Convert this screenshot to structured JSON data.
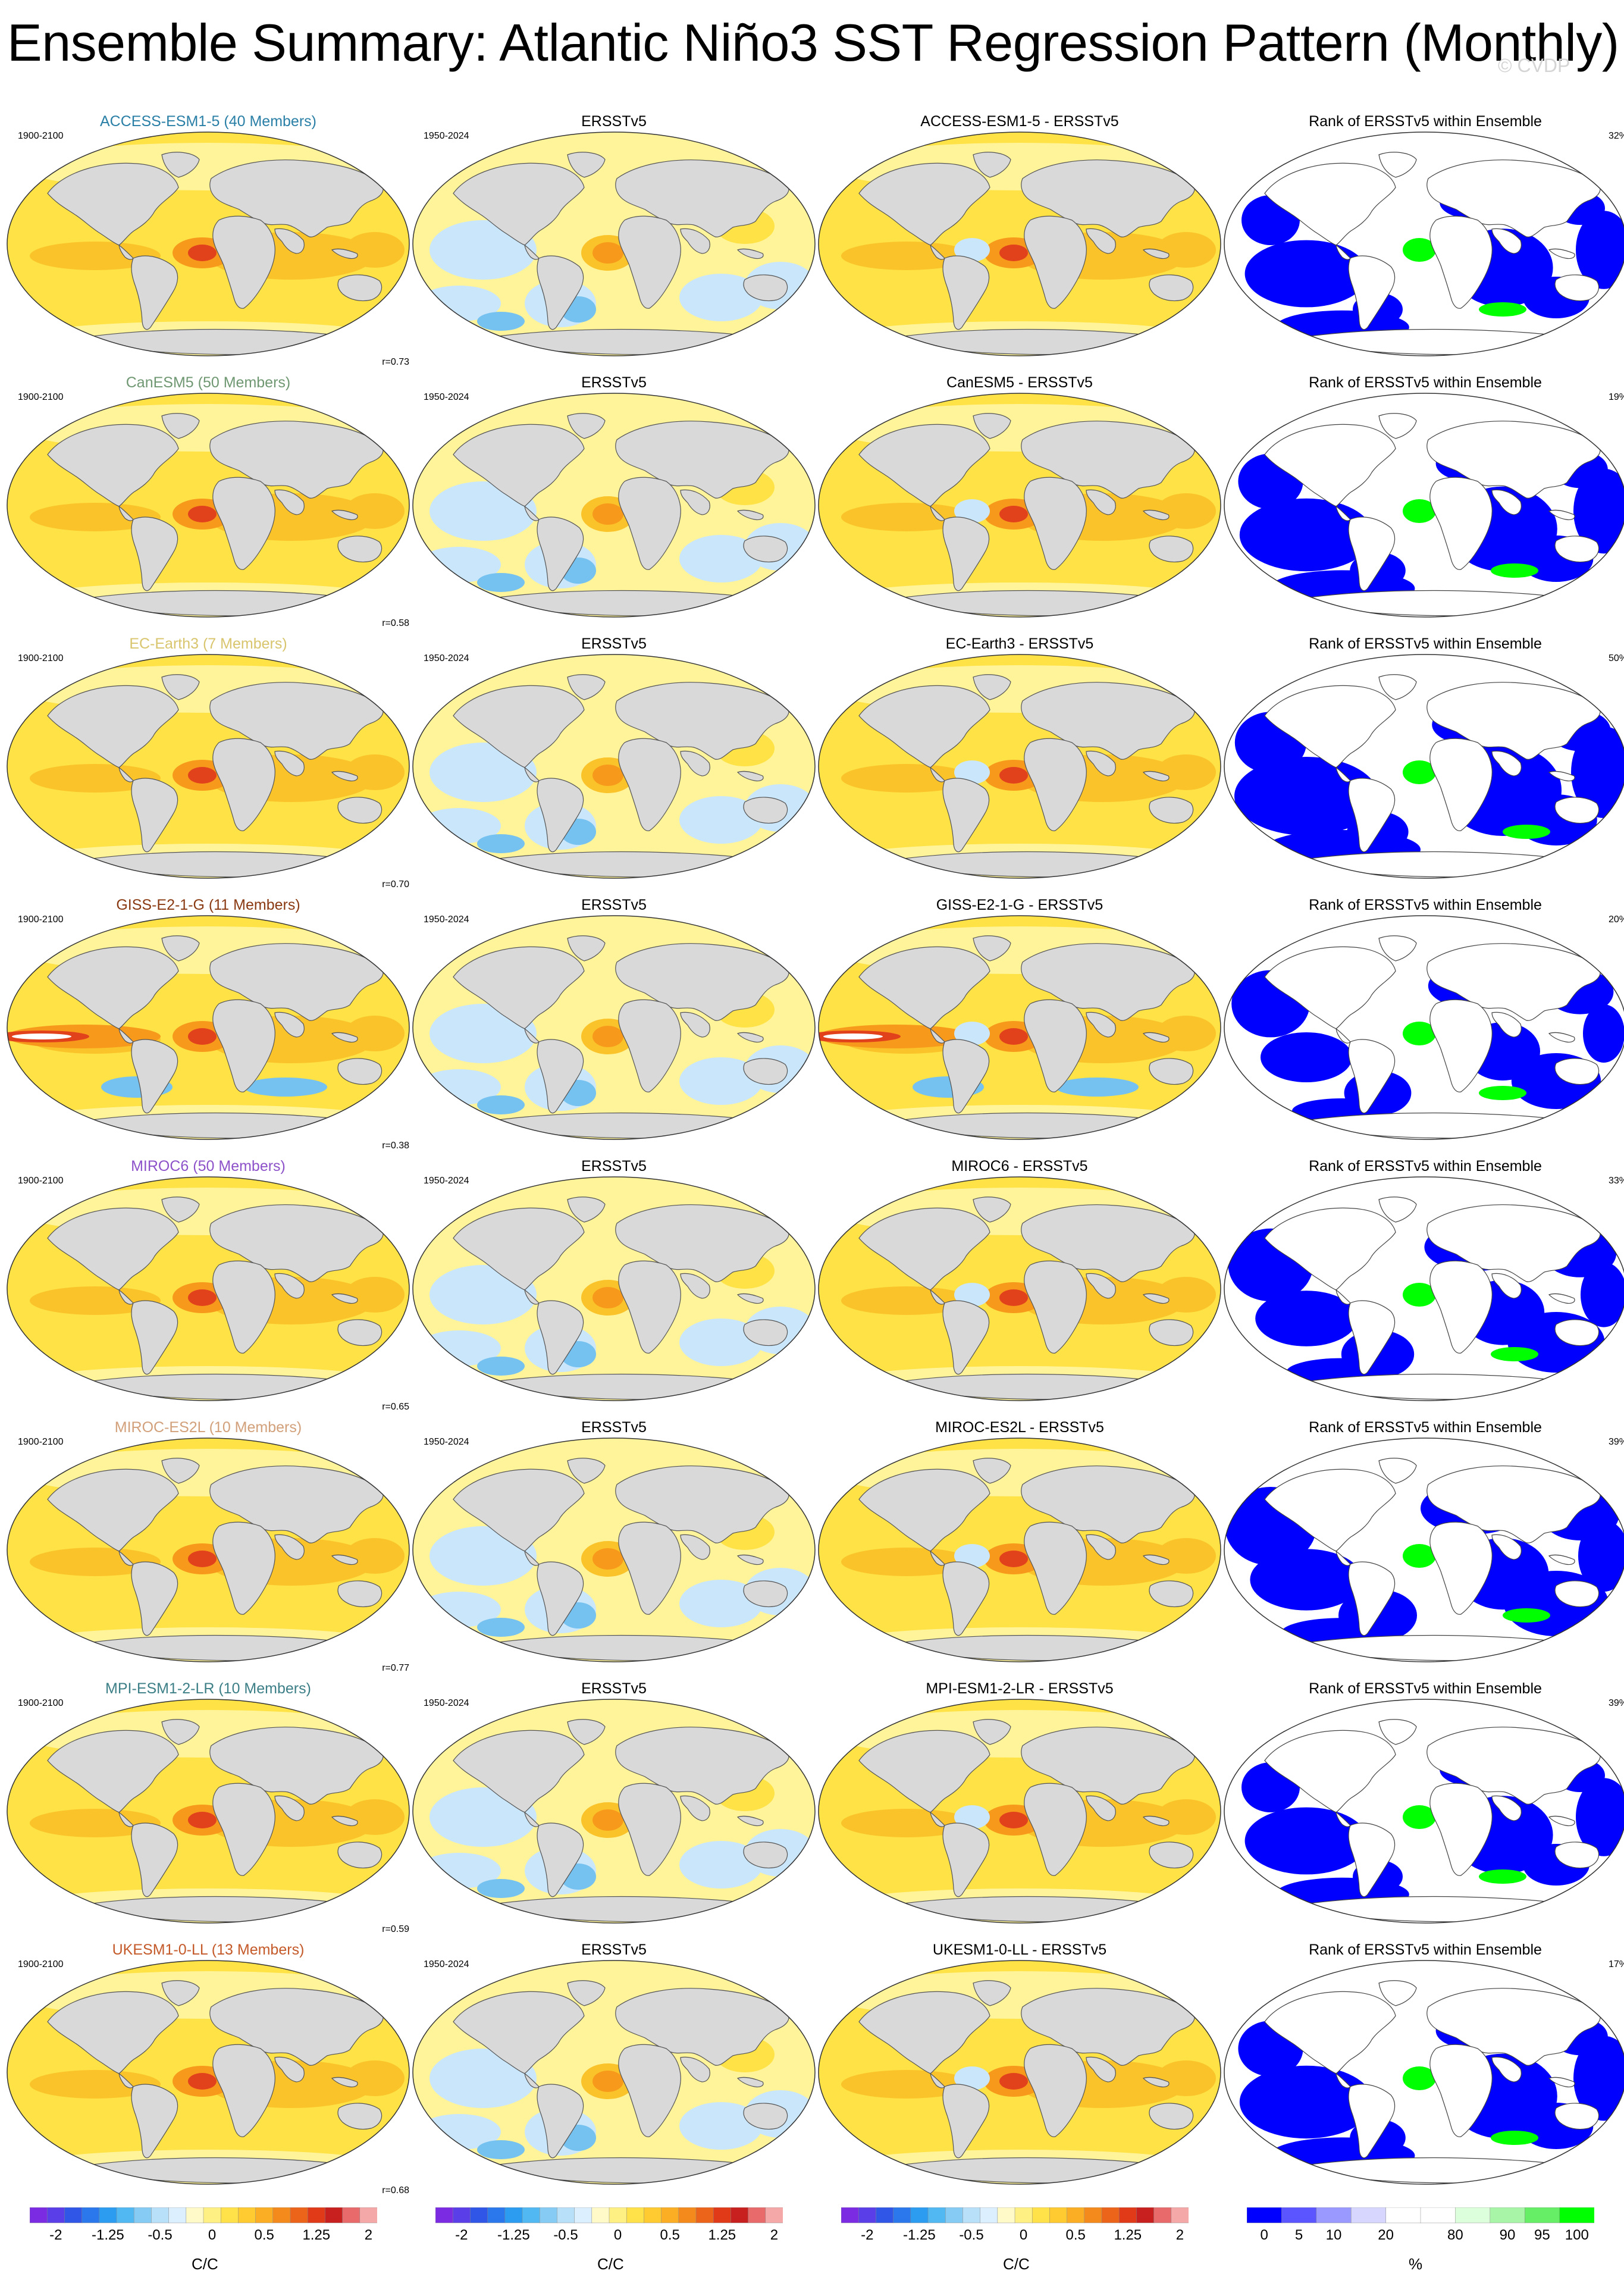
{
  "title": "Ensemble Summary: Atlantic Niño3 SST Regression Pattern (Monthly)",
  "watermark": "© CVDP",
  "colors": {
    "ocean_land": "#d9d9d9",
    "coast": "#555555",
    "warm_pale": "#fff49a",
    "warm_yellow": "#ffe245",
    "warm_gold": "#fbc32a",
    "warm_orange": "#f79a1c",
    "warm_red": "#e2421b",
    "cool_pale": "#c9e6fb",
    "cool_mid": "#75c1f0",
    "rank_blue": "#0000ff",
    "rank_green": "#00ff00",
    "rank_white": "#ffffff"
  },
  "column_headers": {
    "obs": "ERSSTv5",
    "rank": "Rank of ERSSTv5 within Ensemble"
  },
  "periods": {
    "model": "1900-2100",
    "obs": "1950-2024"
  },
  "rows": [
    {
      "model": "ACCESS-ESM1-5",
      "members_label": "ACCESS-ESM1-5 (40 Members)",
      "diff_label": "ACCESS-ESM1-5 - ERSSTv5",
      "corr": "r=0.73",
      "rank_pct": "32%",
      "color": "#2a7fa6"
    },
    {
      "model": "CanESM5",
      "members_label": "CanESM5 (50 Members)",
      "diff_label": "CanESM5 - ERSSTv5",
      "corr": "r=0.58",
      "rank_pct": "19%",
      "color": "#6f9872"
    },
    {
      "model": "EC-Earth3",
      "members_label": "EC-Earth3 (7 Members)",
      "diff_label": "EC-Earth3 - ERSSTv5",
      "corr": "r=0.70",
      "rank_pct": "50%",
      "color": "#d8c56d"
    },
    {
      "model": "GISS-E2-1-G",
      "members_label": "GISS-E2-1-G (11 Members)",
      "diff_label": "GISS-E2-1-G - ERSSTv5",
      "corr": "r=0.38",
      "rank_pct": "20%",
      "color": "#8a3a12"
    },
    {
      "model": "MIROC6",
      "members_label": "MIROC6 (50 Members)",
      "diff_label": "MIROC6 - ERSSTv5",
      "corr": "r=0.65",
      "rank_pct": "33%",
      "color": "#8d52c9"
    },
    {
      "model": "MIROC-ES2L",
      "members_label": "MIROC-ES2L (10 Members)",
      "diff_label": "MIROC-ES2L - ERSSTv5",
      "corr": "r=0.77",
      "rank_pct": "39%",
      "color": "#d2a07a"
    },
    {
      "model": "MPI-ESM1-2-LR",
      "members_label": "MPI-ESM1-2-LR (10 Members)",
      "diff_label": "MPI-ESM1-2-LR - ERSSTv5",
      "corr": "r=0.59",
      "rank_pct": "39%",
      "color": "#3d7f87"
    },
    {
      "model": "UKESM1-0-LL",
      "members_label": "UKESM1-0-LL (13 Members)",
      "diff_label": "UKESM1-0-LL - ERSSTv5",
      "corr": "r=0.68",
      "rank_pct": "17%",
      "color": "#c45a2a"
    }
  ],
  "colorbar_sst": {
    "unit": "C/C",
    "ticks": [
      "-2",
      "-1.25",
      "-0.5",
      "0",
      "0.5",
      "1.25",
      "2"
    ],
    "colors": [
      "#7b2be2",
      "#5a3ee8",
      "#2f56e6",
      "#2a78ec",
      "#2b9cf0",
      "#52b8f2",
      "#86cbf4",
      "#b8e0f8",
      "#dcefff",
      "#fffac8",
      "#fff083",
      "#ffe14a",
      "#ffcb30",
      "#fbad24",
      "#f48a1c",
      "#ec641a",
      "#e03a19",
      "#c8201e",
      "#e96a6a",
      "#f5a8a8"
    ]
  },
  "colorbar_rank": {
    "unit": "%",
    "ticks": [
      "0",
      "5",
      "10",
      "20",
      "80",
      "90",
      "95",
      "100"
    ],
    "colors": [
      "#0000ff",
      "#5a55ff",
      "#9999ff",
      "#d6d6ff",
      "#ffffff",
      "#ffffff",
      "#dcffdc",
      "#a8f5a8",
      "#66ee66",
      "#00ff00"
    ]
  }
}
